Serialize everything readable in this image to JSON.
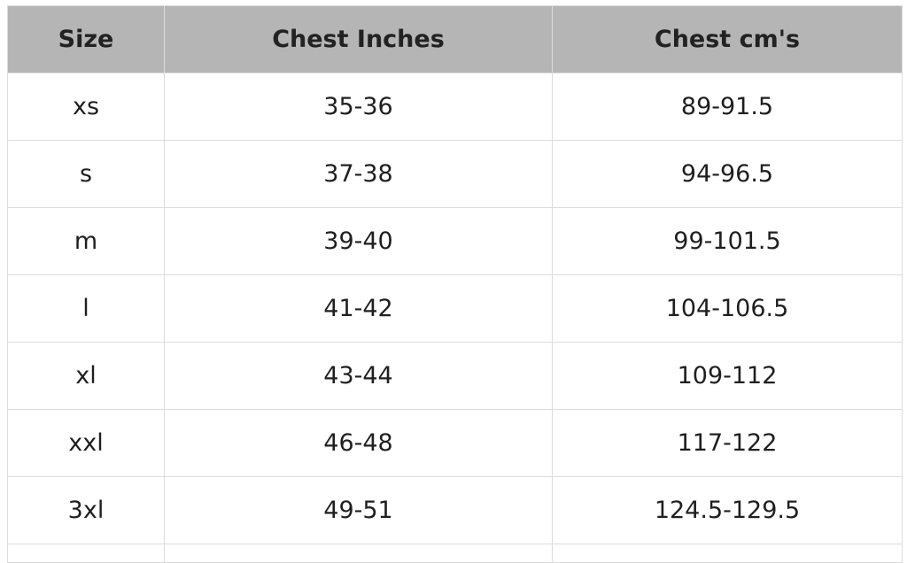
{
  "table": {
    "headers": [
      "Size",
      "Chest Inches",
      "Chest cm's"
    ],
    "rows": [
      [
        "xs",
        "35-36",
        "89-91.5"
      ],
      [
        "s",
        "37-38",
        "94-96.5"
      ],
      [
        "m",
        "39-40",
        "99-101.5"
      ],
      [
        "l",
        "41-42",
        "104-106.5"
      ],
      [
        "xl",
        "43-44",
        "109-112"
      ],
      [
        "xxl",
        "46-48",
        "117-122"
      ],
      [
        "3xl",
        "49-51",
        "124.5-129.5"
      ]
    ]
  },
  "colors": {
    "header_background": "#b5b5b5",
    "border": "#dcdcdc",
    "text": "#1f1f1f"
  }
}
